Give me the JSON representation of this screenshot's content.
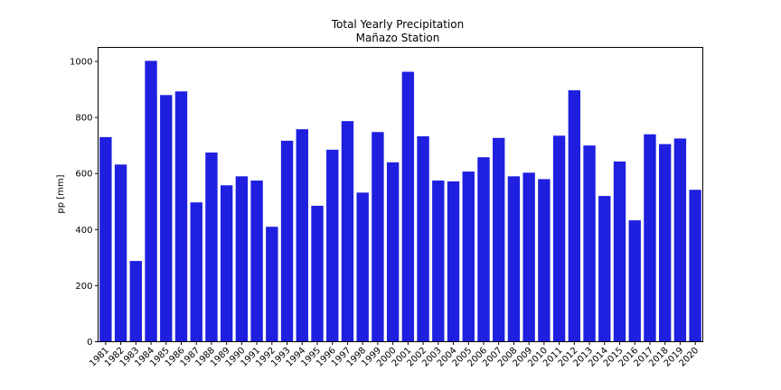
{
  "chart_data": {
    "type": "bar",
    "title": "Total Yearly Precipitation",
    "subtitle": "Mañazo Station",
    "xlabel": "",
    "ylabel": "pp [mm]",
    "ylim": [
      0,
      1050
    ],
    "yticks": [
      0,
      200,
      400,
      600,
      800,
      1000
    ],
    "grid": false,
    "bar_color": "#1f1fe0",
    "categories": [
      "1981",
      "1982",
      "1983",
      "1984",
      "1985",
      "1986",
      "1987",
      "1988",
      "1989",
      "1990",
      "1991",
      "1992",
      "1993",
      "1994",
      "1995",
      "1996",
      "1997",
      "1998",
      "1999",
      "2000",
      "2001",
      "2002",
      "2003",
      "2004",
      "2005",
      "2006",
      "2007",
      "2008",
      "2009",
      "2010",
      "2011",
      "2012",
      "2013",
      "2014",
      "2015",
      "2016",
      "2017",
      "2018",
      "2019",
      "2020"
    ],
    "values": [
      730,
      632,
      288,
      1002,
      880,
      893,
      497,
      675,
      558,
      590,
      575,
      410,
      717,
      758,
      485,
      685,
      787,
      532,
      748,
      640,
      963,
      733,
      575,
      572,
      607,
      658,
      727,
      590,
      603,
      580,
      735,
      897,
      700,
      520,
      643,
      433,
      740,
      705,
      725,
      542
    ]
  }
}
